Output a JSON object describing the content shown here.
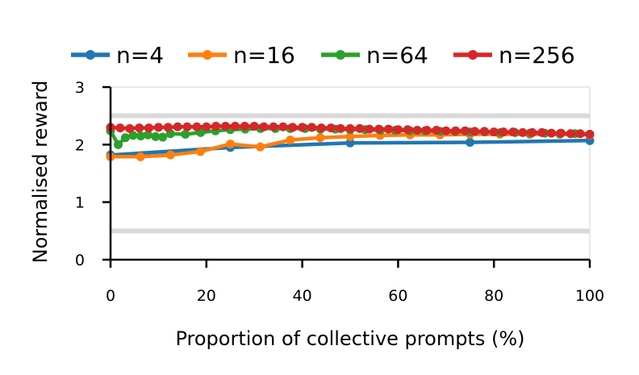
{
  "chart_data": {
    "type": "line",
    "xlabel": "Proportion of collective prompts (%)",
    "ylabel": "Normalised reward",
    "xlim": [
      0,
      100
    ],
    "ylim": [
      0,
      3
    ],
    "xticks": [
      "0",
      "20",
      "40",
      "60",
      "80",
      "100"
    ],
    "yticks": [
      "0",
      "1",
      "2",
      "3"
    ],
    "reference_lines": [
      0.5,
      2.5
    ],
    "reference_color": "#d9d9d9",
    "legend_position": "top",
    "series": [
      {
        "name": "n=4",
        "color": "#1f77b4",
        "x": [
          0,
          25,
          50,
          75,
          100
        ],
        "y": [
          1.82,
          1.95,
          2.03,
          2.04,
          2.07
        ]
      },
      {
        "name": "n=16",
        "color": "#ff7f0e",
        "x": [
          0,
          6.25,
          12.5,
          18.75,
          25,
          31.25,
          37.5,
          43.75,
          50,
          56.25,
          62.5,
          68.75,
          75,
          81.25,
          87.5,
          93.75,
          100
        ],
        "y": [
          1.79,
          1.79,
          1.82,
          1.88,
          2.01,
          1.96,
          2.08,
          2.12,
          2.14,
          2.16,
          2.17,
          2.17,
          2.18,
          2.18,
          2.18,
          2.18,
          2.17
        ]
      },
      {
        "name": "n=64",
        "color": "#2ca02c",
        "x": [
          0,
          1.6,
          3.1,
          4.7,
          6.3,
          7.8,
          9.4,
          10.9,
          12.5,
          15.6,
          18.8,
          21.9,
          25,
          28.1,
          31.3,
          34.4,
          37.5,
          40.6,
          43.8,
          46.9,
          50,
          53.1,
          56.3,
          59.4,
          62.5,
          65.6,
          68.8,
          71.9,
          75,
          78.1,
          81.3,
          84.4,
          87.5,
          90.6,
          93.8,
          96.9,
          100
        ],
        "y": [
          2.24,
          2.0,
          2.12,
          2.16,
          2.15,
          2.17,
          2.14,
          2.13,
          2.19,
          2.18,
          2.21,
          2.24,
          2.26,
          2.27,
          2.28,
          2.28,
          2.28,
          2.28,
          2.27,
          2.27,
          2.26,
          2.26,
          2.25,
          2.25,
          2.24,
          2.24,
          2.23,
          2.23,
          2.22,
          2.22,
          2.21,
          2.21,
          2.2,
          2.2,
          2.19,
          2.19,
          2.18
        ]
      },
      {
        "name": "n=256",
        "color": "#d62728",
        "x": [
          0,
          2,
          4,
          6,
          8,
          10,
          12,
          14,
          16,
          18,
          20,
          22,
          24,
          26,
          28,
          30,
          32,
          34,
          36,
          38,
          40,
          42,
          44,
          46,
          48,
          50,
          52,
          54,
          56,
          58,
          60,
          62,
          64,
          66,
          68,
          70,
          72,
          74,
          76,
          78,
          80,
          82,
          84,
          86,
          88,
          90,
          92,
          94,
          96,
          98,
          100
        ],
        "y": [
          2.3,
          2.29,
          2.28,
          2.29,
          2.29,
          2.3,
          2.3,
          2.31,
          2.31,
          2.31,
          2.31,
          2.32,
          2.32,
          2.32,
          2.32,
          2.32,
          2.31,
          2.31,
          2.31,
          2.3,
          2.3,
          2.3,
          2.29,
          2.29,
          2.28,
          2.28,
          2.28,
          2.27,
          2.27,
          2.27,
          2.26,
          2.26,
          2.25,
          2.25,
          2.25,
          2.24,
          2.24,
          2.24,
          2.23,
          2.23,
          2.22,
          2.22,
          2.22,
          2.21,
          2.21,
          2.21,
          2.2,
          2.2,
          2.19,
          2.19,
          2.18
        ]
      }
    ]
  }
}
